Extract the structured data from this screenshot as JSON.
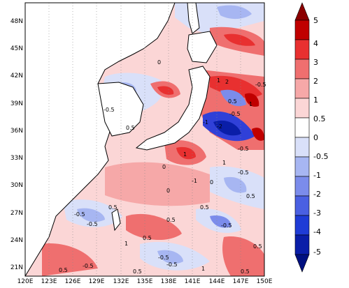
{
  "map": {
    "lon_labels": [
      "120E",
      "123E",
      "126E",
      "129E",
      "132E",
      "135E",
      "138E",
      "141E",
      "144E",
      "147E",
      "150E"
    ],
    "lat_labels": [
      "21N",
      "24N",
      "27N",
      "30N",
      "33N",
      "36N",
      "39N",
      "42N",
      "45N",
      "48N"
    ],
    "lon_range": [
      120,
      150
    ],
    "lat_range": [
      20,
      50
    ],
    "contour_labels": [
      "1",
      "2",
      "-0.5",
      "0",
      "-0.5",
      "0.5",
      "0.5",
      "1",
      "-1",
      "-2",
      "-0.5",
      "-0.5",
      "1",
      "1",
      "0",
      "-0.5",
      "-1",
      "0",
      "0.5",
      "0.5",
      "0.5",
      "-0.5",
      "0.5",
      "1",
      "0.5",
      "-0.5",
      "0.5",
      "1",
      "0.5",
      "-0.5",
      "0.5",
      "0.5",
      "-0.5",
      "-0.5",
      "-0.5",
      "0"
    ]
  },
  "colorbar": {
    "labels": [
      "5",
      "4",
      "3",
      "2",
      "1",
      "0.5",
      "0",
      "-0.5",
      "-1",
      "-2",
      "-3",
      "-4",
      "-5"
    ],
    "colors": [
      "#8b0000",
      "#c00000",
      "#e83030",
      "#ef6f6f",
      "#f6a8a8",
      "#fbd6d6",
      "#ffffff",
      "#d9e0f9",
      "#a7b6f2",
      "#7b8ceb",
      "#4a60e2",
      "#1f3cd6",
      "#0a1ea8",
      "#001080"
    ]
  },
  "legend_colors": {
    "land": "#ffffff",
    "pos_strong": "#e84040",
    "pos_mid": "#f6a8a8",
    "pos_light": "#fbd6d6",
    "neg_light": "#d9e0f9",
    "neg_mid": "#a7b6f2",
    "neg_strong": "#3040d8"
  }
}
